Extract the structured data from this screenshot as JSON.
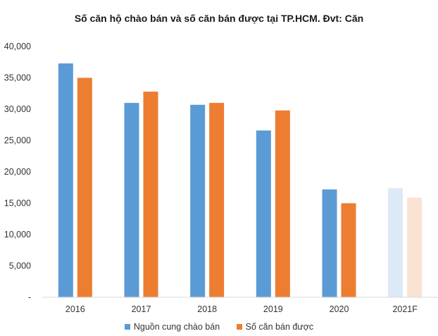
{
  "chart_data": {
    "type": "bar",
    "title": "Số căn hộ chào bán và số căn bán được tại TP.HCM. Đvt: Căn",
    "categories": [
      "2016",
      "2017",
      "2018",
      "2019",
      "2020",
      "2021F"
    ],
    "series": [
      {
        "name": "Nguồn cung chào bán",
        "color": "#5b9bd5",
        "faded_color": "#dde9f6",
        "values": [
          37300,
          31000,
          30700,
          26600,
          17200,
          17400
        ]
      },
      {
        "name": "Số căn bán được",
        "color": "#ed7d31",
        "faded_color": "#fbe3d3",
        "values": [
          35000,
          32800,
          31000,
          29800,
          15000,
          15900
        ]
      }
    ],
    "forecast_categories": [
      "2021F"
    ],
    "ylim": [
      0,
      40000
    ],
    "yticks": [
      0,
      5000,
      10000,
      15000,
      20000,
      25000,
      30000,
      35000,
      40000
    ],
    "ytick_labels": [
      "-",
      "5,000",
      "10,000",
      "15,000",
      "20,000",
      "25,000",
      "30,000",
      "35,000",
      "40,000"
    ],
    "xlabel": "",
    "ylabel": "",
    "legend_position": "bottom",
    "gridlines": false
  }
}
